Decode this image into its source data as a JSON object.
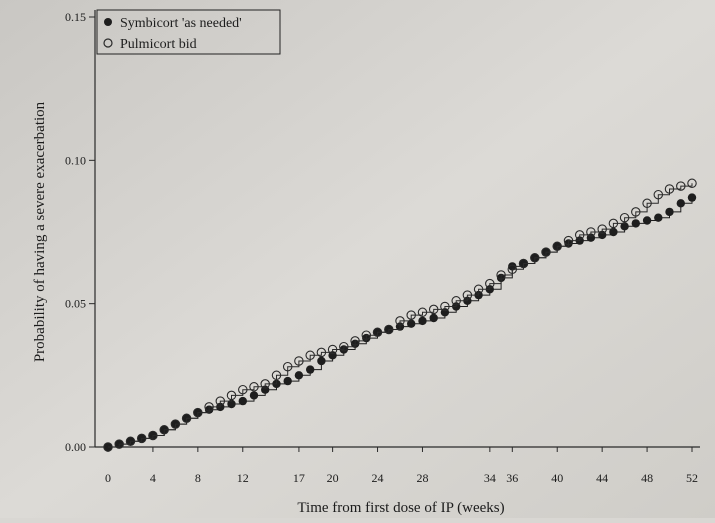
{
  "chart_data": {
    "type": "line",
    "xlabel": "Time from first dose of IP (weeks)",
    "ylabel": "Probability of having a severe exacerbation",
    "xlim": [
      0,
      52
    ],
    "ylim": [
      0,
      0.15
    ],
    "xticks": [
      0,
      4,
      8,
      12,
      17,
      20,
      24,
      28,
      34,
      36,
      40,
      44,
      48,
      52
    ],
    "xtick_labels": [
      "0",
      "4",
      "8",
      "12",
      "17",
      "20",
      "24",
      "28",
      "34",
      "36",
      "40",
      "44",
      "48",
      "52"
    ],
    "yticks": [
      0.0,
      0.05,
      0.1,
      0.15
    ],
    "ytick_labels": [
      "0.00",
      "0.05",
      "0.10",
      "0.15"
    ],
    "grid": false,
    "legend_position": "top-left",
    "series": [
      {
        "name": "Symbicort 'as needed'",
        "marker": "filled-circle",
        "color": "#1e1e1e",
        "x": [
          0,
          1,
          2,
          3,
          4,
          5,
          6,
          7,
          8,
          9,
          10,
          11,
          12,
          13,
          14,
          15,
          16,
          17,
          18,
          19,
          20,
          21,
          22,
          23,
          24,
          25,
          26,
          27,
          28,
          29,
          30,
          31,
          32,
          33,
          34,
          35,
          36,
          37,
          38,
          39,
          40,
          41,
          42,
          43,
          44,
          45,
          46,
          47,
          48,
          49,
          50,
          51,
          52
        ],
        "y": [
          0.0,
          0.001,
          0.002,
          0.003,
          0.004,
          0.006,
          0.008,
          0.01,
          0.012,
          0.013,
          0.014,
          0.015,
          0.016,
          0.018,
          0.02,
          0.022,
          0.023,
          0.025,
          0.027,
          0.03,
          0.032,
          0.034,
          0.036,
          0.038,
          0.04,
          0.041,
          0.042,
          0.043,
          0.044,
          0.045,
          0.047,
          0.049,
          0.051,
          0.053,
          0.055,
          0.059,
          0.063,
          0.064,
          0.066,
          0.068,
          0.07,
          0.071,
          0.072,
          0.073,
          0.074,
          0.075,
          0.077,
          0.078,
          0.079,
          0.08,
          0.082,
          0.085,
          0.087
        ]
      },
      {
        "name": "Pulmicort bid",
        "marker": "open-circle",
        "color": "#2a2a2a",
        "x": [
          0,
          1,
          2,
          3,
          4,
          5,
          6,
          7,
          8,
          9,
          10,
          11,
          12,
          13,
          14,
          15,
          16,
          17,
          18,
          19,
          20,
          21,
          22,
          23,
          24,
          25,
          26,
          27,
          28,
          29,
          30,
          31,
          32,
          33,
          34,
          35,
          36,
          37,
          38,
          39,
          40,
          41,
          42,
          43,
          44,
          45,
          46,
          47,
          48,
          49,
          50,
          51,
          52
        ],
        "y": [
          0.0,
          0.001,
          0.002,
          0.003,
          0.004,
          0.006,
          0.008,
          0.01,
          0.012,
          0.014,
          0.016,
          0.018,
          0.02,
          0.021,
          0.022,
          0.025,
          0.028,
          0.03,
          0.032,
          0.033,
          0.034,
          0.035,
          0.037,
          0.039,
          0.04,
          0.041,
          0.044,
          0.046,
          0.047,
          0.048,
          0.049,
          0.051,
          0.053,
          0.055,
          0.057,
          0.06,
          0.062,
          0.064,
          0.066,
          0.068,
          0.07,
          0.072,
          0.074,
          0.075,
          0.076,
          0.078,
          0.08,
          0.082,
          0.085,
          0.088,
          0.09,
          0.091,
          0.092
        ]
      }
    ]
  }
}
